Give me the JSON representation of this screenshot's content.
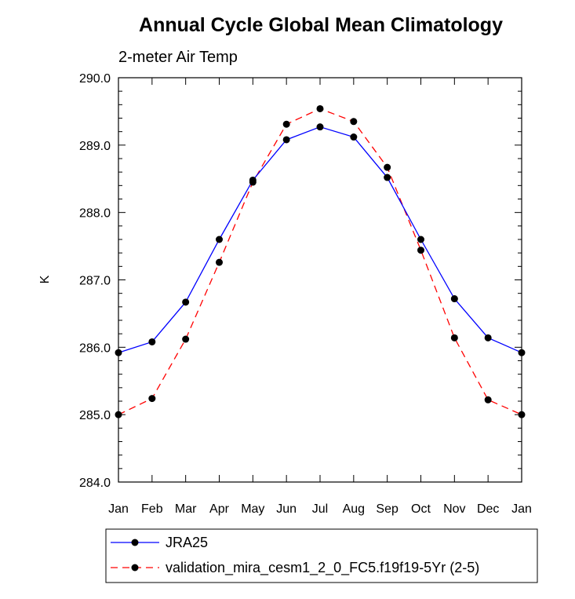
{
  "chart_data": {
    "type": "line",
    "title": "Annual Cycle Global Mean Climatology",
    "subtitle": "2-meter Air Temp",
    "xlabel": "",
    "ylabel": "K",
    "categories": [
      "Jan",
      "Feb",
      "Mar",
      "Apr",
      "May",
      "Jun",
      "Jul",
      "Aug",
      "Sep",
      "Oct",
      "Nov",
      "Dec",
      "Jan"
    ],
    "ylim": [
      284.0,
      290.0
    ],
    "yticks": [
      "284.0",
      "285.0",
      "286.0",
      "287.0",
      "288.0",
      "289.0",
      "290.0"
    ],
    "grid": false,
    "legend_position": "bottom",
    "series": [
      {
        "name": "JRA25",
        "color": "#0000ff",
        "dash": "solid",
        "marker": "dot",
        "values": [
          285.92,
          286.08,
          286.67,
          287.6,
          288.48,
          289.08,
          289.27,
          289.12,
          288.52,
          287.6,
          286.72,
          286.14,
          285.92
        ]
      },
      {
        "name": "validation_mira_cesm1_2_0_FC5.f19f19-5Yr (2-5)",
        "color": "#ff0000",
        "dash": "dashed",
        "marker": "dot",
        "values": [
          285.0,
          285.24,
          286.12,
          287.26,
          288.45,
          289.31,
          289.54,
          289.35,
          288.67,
          287.44,
          286.14,
          285.22,
          285.0
        ]
      }
    ]
  }
}
